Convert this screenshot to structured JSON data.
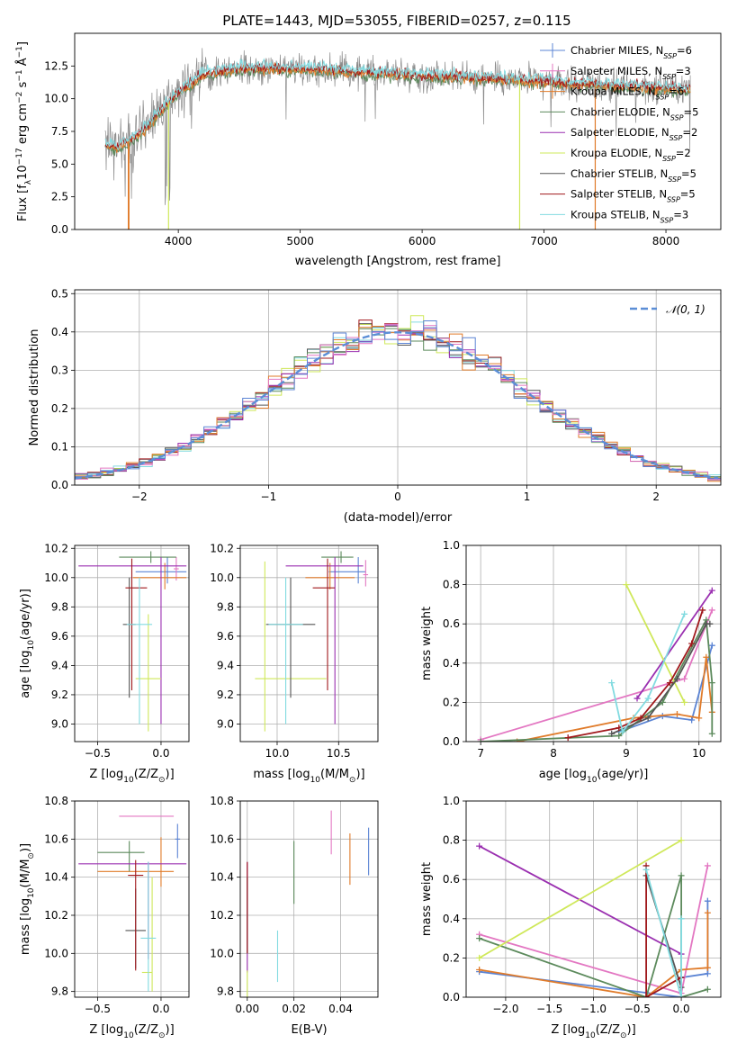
{
  "figure_title": "PLATE=1443, MJD=53055, FIBERID=0257, z=0.115",
  "models": [
    {
      "name": "Chabrier MILES, N_SSP=6",
      "color": "#5b84d4"
    },
    {
      "name": "Salpeter MILES, N_SSP=3",
      "color": "#e377c2"
    },
    {
      "name": "Kroupa MILES, N_SSP=6",
      "color": "#e07b2a"
    },
    {
      "name": "Chabrier ELODIE, N_SSP=5",
      "color": "#5c8a5c"
    },
    {
      "name": "Salpeter ELODIE, N_SSP=2",
      "color": "#9a2fb0"
    },
    {
      "name": "Kroupa ELODIE, N_SSP=2",
      "color": "#cfe85a"
    },
    {
      "name": "Chabrier STELIB, N_SSP=5",
      "color": "#555555"
    },
    {
      "name": "Salpeter STELIB, N_SSP=5",
      "color": "#a0181c"
    },
    {
      "name": "Kroupa STELIB, N_SSP=3",
      "color": "#82dbe0"
    }
  ],
  "chart_data": [
    {
      "id": "spectrum",
      "type": "line",
      "title": "PLATE=1443, MJD=53055, FIBERID=0257, z=0.115",
      "xlabel": "wavelength [Angstrom, rest frame]",
      "ylabel": "Flux [f_λ 10^-17 erg cm^-2 s^-1 Å^-1]",
      "xlim": [
        3150,
        8450
      ],
      "ylim": [
        0,
        15
      ],
      "xticks": [
        4000,
        5000,
        6000,
        7000,
        8000
      ],
      "yticks": [
        "0.0",
        "2.5",
        "5.0",
        "7.5",
        "10.0",
        "12.5"
      ],
      "data_envelope": {
        "x": [
          3400,
          3500,
          3600,
          3700,
          3800,
          3900,
          4000,
          4200,
          4500,
          5000,
          5500,
          6000,
          6500,
          7000,
          7500,
          8000,
          8200
        ],
        "y": [
          6.5,
          6.3,
          6.8,
          7.5,
          8.5,
          9.5,
          10.5,
          11.8,
          12.3,
          12.3,
          12.0,
          11.8,
          11.6,
          11.3,
          11.0,
          10.8,
          10.7
        ]
      },
      "drops_to_zero_at": [
        3590,
        3920,
        6800,
        7420
      ]
    },
    {
      "id": "residuals",
      "type": "histogram",
      "xlabel": "(data-model)/error",
      "ylabel": "Normed distribution",
      "xlim": [
        -2.5,
        2.5
      ],
      "ylim": [
        0,
        0.51
      ],
      "xticks": [
        -2,
        -1,
        0,
        1,
        2
      ],
      "yticks": [
        "0.0",
        "0.1",
        "0.2",
        "0.3",
        "0.4",
        "0.5"
      ],
      "reference_curve": "N(0,1)",
      "reference_label": "𝒩(0, 1)",
      "bin_width": 0.1
    },
    {
      "id": "age_vs_Z",
      "type": "errorbar",
      "xlabel": "Z [log10(Z/Z☉)]",
      "ylabel": "age [log10(age/yr)]",
      "xlim": [
        -0.68,
        0.22
      ],
      "ylim": [
        8.88,
        10.22
      ],
      "xticks": [
        "-0.5",
        "0.0"
      ],
      "yticks": [
        "9.0",
        "9.2",
        "9.4",
        "9.6",
        "9.8",
        "10.0",
        "10.2"
      ],
      "points": [
        {
          "model": 0,
          "x": 0.05,
          "xerr": [
            0.25,
            0.15
          ],
          "y": 10.04,
          "yerr": [
            0.08,
            0.1
          ]
        },
        {
          "model": 1,
          "x": 0.12,
          "xerr": [
            0.02,
            0.02
          ],
          "y": 10.06,
          "yerr": [
            0.08,
            0.08
          ]
        },
        {
          "model": 2,
          "x": 0.03,
          "xerr": [
            0.25,
            0.17
          ],
          "y": 10.0,
          "yerr": [
            0.08,
            0.1
          ]
        },
        {
          "model": 3,
          "x": -0.08,
          "xerr": [
            0.25,
            0.2
          ],
          "y": 10.14,
          "yerr": [
            0.04,
            0.04
          ]
        },
        {
          "model": 4,
          "x": -0.0,
          "xerr": [
            0.65,
            0.2
          ],
          "y": 10.08,
          "yerr": [
            1.08,
            0.06
          ]
        },
        {
          "model": 5,
          "x": -0.1,
          "xerr": [
            0.1,
            0.1
          ],
          "y": 9.31,
          "yerr": [
            0.36,
            0.44
          ]
        },
        {
          "model": 6,
          "x": -0.25,
          "xerr": [
            0.05,
            0.05
          ],
          "y": 9.68,
          "yerr": [
            0.5,
            0.32
          ]
        },
        {
          "model": 7,
          "x": -0.23,
          "xerr": [
            0.05,
            0.12
          ],
          "y": 9.93,
          "yerr": [
            0.7,
            0.2
          ]
        },
        {
          "model": 8,
          "x": -0.17,
          "xerr": [
            0.1,
            0.1
          ],
          "y": 9.68,
          "yerr": [
            0.68,
            0.32
          ]
        }
      ]
    },
    {
      "id": "age_vs_mass",
      "type": "errorbar",
      "xlabel": "mass [log10(M/M☉)]",
      "ylabel": "",
      "xlim": [
        9.7,
        10.82
      ],
      "ylim": [
        8.88,
        10.22
      ],
      "xticks": [
        "10.0",
        "10.5"
      ],
      "yticks": [
        "9.0",
        "9.2",
        "9.4",
        "9.6",
        "9.8",
        "10.0",
        "10.2"
      ],
      "points": [
        {
          "model": 0,
          "x": 10.66,
          "xerr": [
            0.24,
            0.06
          ],
          "y": 10.04,
          "yerr": [
            0.08,
            0.1
          ]
        },
        {
          "model": 1,
          "x": 10.72,
          "xerr": [
            0.02,
            0.02
          ],
          "y": 10.02,
          "yerr": [
            0.08,
            0.1
          ]
        },
        {
          "model": 2,
          "x": 10.43,
          "xerr": [
            0.2,
            0.2
          ],
          "y": 10.0,
          "yerr": [
            0.08,
            0.1
          ]
        },
        {
          "model": 3,
          "x": 10.52,
          "xerr": [
            0.16,
            0.1
          ],
          "y": 10.14,
          "yerr": [
            0.04,
            0.04
          ]
        },
        {
          "model": 4,
          "x": 10.47,
          "xerr": [
            0.4,
            0.23
          ],
          "y": 10.08,
          "yerr": [
            1.08,
            0.06
          ]
        },
        {
          "model": 5,
          "x": 9.9,
          "xerr": [
            0.08,
            0.5
          ],
          "y": 9.31,
          "yerr": [
            0.36,
            0.8
          ]
        },
        {
          "model": 6,
          "x": 10.11,
          "xerr": [
            0.2,
            0.2
          ],
          "y": 9.68,
          "yerr": [
            0.5,
            0.32
          ]
        },
        {
          "model": 7,
          "x": 10.41,
          "xerr": [
            0.12,
            0.06
          ],
          "y": 9.93,
          "yerr": [
            0.7,
            0.2
          ]
        },
        {
          "model": 8,
          "x": 10.07,
          "xerr": [
            0.14,
            0.14
          ],
          "y": 9.68,
          "yerr": [
            0.68,
            0.32
          ]
        }
      ]
    },
    {
      "id": "massweight_vs_age",
      "type": "line",
      "xlabel": "age [log10(age/yr)]",
      "ylabel": "mass weight",
      "xlim": [
        6.8,
        10.3
      ],
      "ylim": [
        0,
        1
      ],
      "xticks": [
        "7",
        "8",
        "9",
        "10"
      ],
      "yticks": [
        "0.0",
        "0.2",
        "0.4",
        "0.6",
        "0.8",
        "1.0"
      ],
      "series": [
        {
          "model": 0,
          "x": [
            8.9,
            9.5,
            9.9,
            10.18
          ],
          "y": [
            0.05,
            0.13,
            0.11,
            0.49
          ]
        },
        {
          "model": 1,
          "x": [
            7.0,
            9.8,
            10.18
          ],
          "y": [
            0.01,
            0.32,
            0.67
          ]
        },
        {
          "model": 2,
          "x": [
            7.5,
            9.1,
            9.7,
            10.0,
            10.1,
            10.18
          ],
          "y": [
            0.0,
            0.12,
            0.14,
            0.12,
            0.43,
            0.15
          ]
        },
        {
          "model": 3,
          "x": [
            7.0,
            8.9,
            9.5,
            10.1,
            10.18,
            10.18
          ],
          "y": [
            0.0,
            0.03,
            0.2,
            0.62,
            0.3,
            0.04
          ]
        },
        {
          "model": 4,
          "x": [
            9.15,
            10.18
          ],
          "y": [
            0.22,
            0.77
          ]
        },
        {
          "model": 5,
          "x": [
            9.0,
            9.8
          ],
          "y": [
            0.8,
            0.2
          ]
        },
        {
          "model": 6,
          "x": [
            8.8,
            9.3,
            9.7,
            10.1,
            10.15
          ],
          "y": [
            0.04,
            0.12,
            0.32,
            0.6,
            0.6
          ]
        },
        {
          "model": 7,
          "x": [
            8.2,
            8.9,
            9.2,
            9.6,
            9.9,
            10.05
          ],
          "y": [
            0.02,
            0.07,
            0.12,
            0.3,
            0.5,
            0.67
          ]
        },
        {
          "model": 8,
          "x": [
            8.8,
            8.95,
            9.3,
            9.8
          ],
          "y": [
            0.3,
            0.05,
            0.22,
            0.65
          ]
        }
      ]
    },
    {
      "id": "mass_vs_Z",
      "type": "errorbar",
      "xlabel": "Z [log10(Z/Z☉)]",
      "ylabel": "mass [log10(M/M☉)]",
      "xlim": [
        -0.68,
        0.22
      ],
      "ylim": [
        9.77,
        10.8
      ],
      "xticks": [
        "-0.5",
        "0.0"
      ],
      "yticks": [
        "9.8",
        "10.0",
        "10.2",
        "10.4",
        "10.6",
        "10.8"
      ],
      "points": [
        {
          "model": 0,
          "x": 0.13,
          "xerr": [
            0.02,
            0.02
          ],
          "y": 10.6,
          "yerr": [
            0.1,
            0.08
          ]
        },
        {
          "model": 1,
          "x": -0.05,
          "xerr": [
            0.28,
            0.15
          ],
          "y": 10.72,
          "yerr": [
            0.0,
            0.0
          ]
        },
        {
          "model": 2,
          "x": 0.0,
          "xerr": [
            0.5,
            0.1
          ],
          "y": 10.43,
          "yerr": [
            0.08,
            0.18
          ]
        },
        {
          "model": 3,
          "x": -0.25,
          "xerr": [
            0.25,
            0.12
          ],
          "y": 10.53,
          "yerr": [
            0.1,
            0.06
          ]
        },
        {
          "model": 4,
          "x": -0.1,
          "xerr": [
            0.55,
            0.3
          ],
          "y": 10.47,
          "yerr": [
            0.5,
            0.01
          ]
        },
        {
          "model": 5,
          "x": -0.07,
          "xerr": [
            0.08,
            0.0
          ],
          "y": 9.9,
          "yerr": [
            0.1,
            0.5
          ]
        },
        {
          "model": 6,
          "x": -0.2,
          "xerr": [
            0.08,
            0.08
          ],
          "y": 10.12,
          "yerr": [
            0.2,
            0.22
          ]
        },
        {
          "model": 7,
          "x": -0.2,
          "xerr": [
            0.06,
            0.06
          ],
          "y": 10.41,
          "yerr": [
            0.5,
            0.08
          ]
        },
        {
          "model": 8,
          "x": -0.1,
          "xerr": [
            0.06,
            0.06
          ],
          "y": 10.08,
          "yerr": [
            0.28,
            0.4
          ]
        }
      ]
    },
    {
      "id": "mass_vs_EBV",
      "type": "errorbar",
      "xlabel": "E(B-V)",
      "ylabel": "",
      "xlim": [
        -0.003,
        0.056
      ],
      "ylim": [
        9.77,
        10.8
      ],
      "xticks": [
        "0.00",
        "0.02",
        "0.04"
      ],
      "yticks": [
        "9.8",
        "10.0",
        "10.2",
        "10.4",
        "10.6",
        "10.8"
      ],
      "points": [
        {
          "model": 0,
          "x": 0.052,
          "y": 10.53,
          "yerr": [
            0.12,
            0.13
          ]
        },
        {
          "model": 1,
          "x": 0.036,
          "y": 10.62,
          "yerr": [
            0.1,
            0.13
          ]
        },
        {
          "model": 2,
          "x": 0.044,
          "y": 10.49,
          "yerr": [
            0.13,
            0.14
          ]
        },
        {
          "model": 3,
          "x": 0.02,
          "y": 10.42,
          "yerr": [
            0.16,
            0.17
          ]
        },
        {
          "model": 4,
          "x": 0.0,
          "y": 10.1,
          "yerr": [
            0.2,
            0.38
          ]
        },
        {
          "model": 5,
          "x": 0.0,
          "y": 9.85,
          "yerr": [
            0.08,
            0.06
          ]
        },
        {
          "model": 6,
          "x": 0.0,
          "y": 10.2,
          "yerr": [
            0.2,
            0.2
          ]
        },
        {
          "model": 7,
          "x": 0.0,
          "y": 10.2,
          "yerr": [
            0.2,
            0.28
          ]
        },
        {
          "model": 8,
          "x": 0.013,
          "y": 9.98,
          "yerr": [
            0.13,
            0.14
          ]
        }
      ]
    },
    {
      "id": "massweight_vs_Z",
      "type": "line",
      "xlabel": "Z [log10(Z/Z☉)]",
      "ylabel": "mass weight",
      "xlim": [
        -2.45,
        0.45
      ],
      "ylim": [
        0,
        1
      ],
      "xticks": [
        "-2.0",
        "-1.5",
        "-1.0",
        "-0.5",
        "0.0"
      ],
      "yticks": [
        "0.0",
        "0.2",
        "0.4",
        "0.6",
        "0.8",
        "1.0"
      ],
      "series": [
        {
          "model": 0,
          "x": [
            -2.3,
            0.0,
            0.0,
            0.3,
            0.3
          ],
          "y": [
            0.13,
            0.0,
            0.1,
            0.12,
            0.49
          ]
        },
        {
          "model": 1,
          "x": [
            -2.3,
            0.0,
            0.3
          ],
          "y": [
            0.32,
            0.02,
            0.67
          ]
        },
        {
          "model": 2,
          "x": [
            -2.3,
            -0.4,
            0.0,
            0.3,
            0.3
          ],
          "y": [
            0.14,
            0.0,
            0.14,
            0.15,
            0.43
          ]
        },
        {
          "model": 3,
          "x": [
            -2.3,
            -0.4,
            0.0,
            0.0,
            0.3
          ],
          "y": [
            0.3,
            0.0,
            0.62,
            0.0,
            0.04
          ]
        },
        {
          "model": 4,
          "x": [
            -2.3,
            0.0
          ],
          "y": [
            0.77,
            0.22
          ]
        },
        {
          "model": 5,
          "x": [
            -2.3,
            0.0
          ],
          "y": [
            0.2,
            0.8
          ]
        },
        {
          "model": 6,
          "x": [
            -0.4,
            0.0
          ],
          "y": [
            0.62,
            0.05
          ]
        },
        {
          "model": 7,
          "x": [
            -0.4,
            -0.4,
            0.0,
            0.0
          ],
          "y": [
            0.67,
            0.0,
            0.1,
            0.0
          ]
        },
        {
          "model": 8,
          "x": [
            -0.4,
            0.0,
            0.0
          ],
          "y": [
            0.65,
            0.0,
            0.4
          ]
        }
      ]
    }
  ]
}
